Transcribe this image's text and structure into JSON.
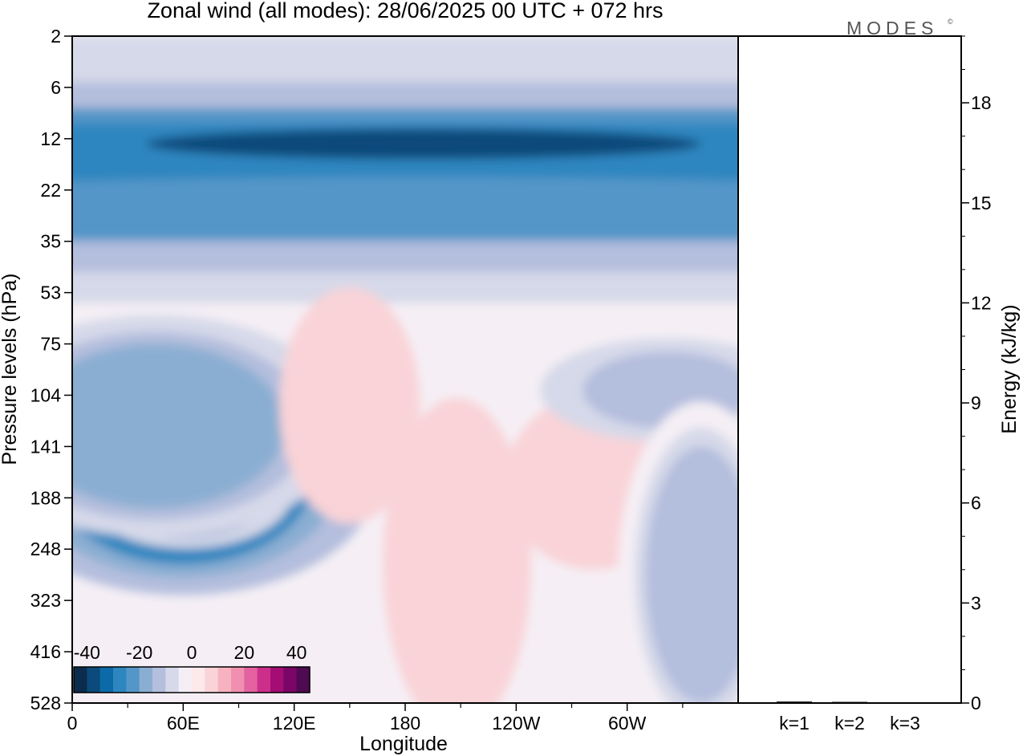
{
  "title": "Zonal wind (all modes):  28/06/2025  00 UTC  + 072 hrs",
  "brand": "MODES",
  "brand_mark": "©",
  "chart_data": [
    {
      "type": "heatmap",
      "title": "Zonal wind (all modes):  28/06/2025  00 UTC  + 072 hrs",
      "xlabel": "Longitude",
      "ylabel": "Pressure levels (hPa)",
      "x_ticks": [
        "0",
        "60E",
        "120E",
        "180",
        "120W",
        "60W"
      ],
      "x_tick_degrees": [
        0,
        60,
        120,
        180,
        240,
        300
      ],
      "x_range_degrees": [
        0,
        360
      ],
      "y_ticks": [
        "2",
        "6",
        "12",
        "22",
        "35",
        "53",
        "75",
        "104",
        "141",
        "188",
        "248",
        "323",
        "416",
        "528"
      ],
      "y_direction": "downward",
      "colorbar": {
        "ticks": [
          "-40",
          "-20",
          "0",
          "20",
          "40"
        ],
        "range": [
          -45,
          45
        ],
        "step": 5,
        "colors": [
          "#0b2c4d",
          "#0b4a7a",
          "#0c6aa8",
          "#2d86c0",
          "#5596c8",
          "#8aaed2",
          "#b4bedd",
          "#d6d9e9",
          "#f5eff5",
          "#fde8ea",
          "#f9d3d7",
          "#f6b3bf",
          "#f08fb0",
          "#e4629f",
          "#cc2f8b",
          "#a30d74",
          "#7a0667",
          "#4e0a52"
        ]
      },
      "features": [
        {
          "lon": 190,
          "level_index": 2.1,
          "value": -36
        },
        {
          "lon": 185,
          "level_index": 3.2,
          "value": -25
        },
        {
          "lon": 60,
          "level_index": 8.6,
          "value": -28
        },
        {
          "lon": 62,
          "level_index": 8.9,
          "value": -22
        },
        {
          "lon": 45,
          "level_index": 7.6,
          "value": -18
        },
        {
          "lon": 150,
          "level_index": 7.2,
          "value": 7
        },
        {
          "lon": 208,
          "level_index": 10.3,
          "value": 7
        },
        {
          "lon": 282,
          "level_index": 8.7,
          "value": 8
        },
        {
          "lon": 322,
          "level_index": 6.9,
          "value": -14
        },
        {
          "lon": 340,
          "level_index": 10.5,
          "value": -12
        }
      ]
    },
    {
      "type": "bar",
      "ylabel": "Energy (kJ/kg)",
      "categories": [
        "k=1",
        "k=2",
        "k=3"
      ],
      "values": [
        0.02,
        0.01,
        0.0
      ],
      "y_ticks": [
        "0",
        "3",
        "6",
        "9",
        "12",
        "15",
        "18"
      ],
      "ylim": [
        0,
        20
      ]
    }
  ]
}
